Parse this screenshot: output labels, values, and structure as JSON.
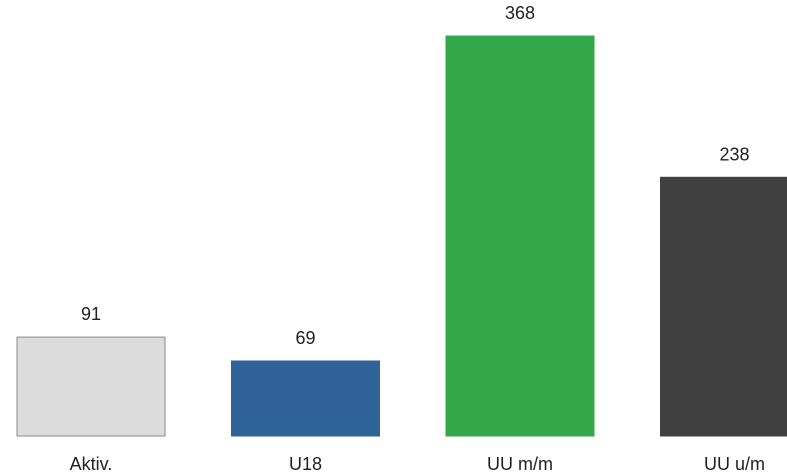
{
  "chart_data": {
    "type": "bar",
    "title": "",
    "xlabel": "",
    "ylabel": "",
    "ylim": [
      0,
      400
    ],
    "grid": false,
    "legend": "none",
    "categories": [
      "Aktiv.",
      "U18",
      "UU m/m",
      "UU u/m"
    ],
    "values": [
      91,
      69,
      368,
      238
    ],
    "colors": [
      "#dcdcdc",
      "#2f6397",
      "#33a84a",
      "#404040"
    ],
    "edge_colors": [
      "#8a8a8a",
      "#2f6397",
      "#33a84a",
      "#404040"
    ]
  }
}
